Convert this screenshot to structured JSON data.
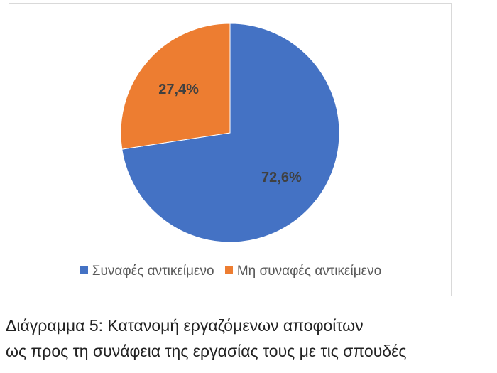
{
  "chart_data": {
    "type": "pie",
    "labels": [
      "Συναφές αντικείμενο",
      "Μη συναφές αντικείμενο"
    ],
    "values": [
      72.6,
      27.4
    ],
    "value_labels": [
      "72,6%",
      "27,4%"
    ],
    "colors": [
      "#4472C4",
      "#ED7D31"
    ],
    "start_angle": "12 o'clock",
    "direction": "clockwise",
    "legend_position": "bottom"
  },
  "caption": {
    "line1": "Διάγραμμα 5: Κατανομή εργαζόμενων αποφοίτων",
    "line2": "ως προς τη συνάφεια της εργασίας τους με τις σπουδές"
  }
}
